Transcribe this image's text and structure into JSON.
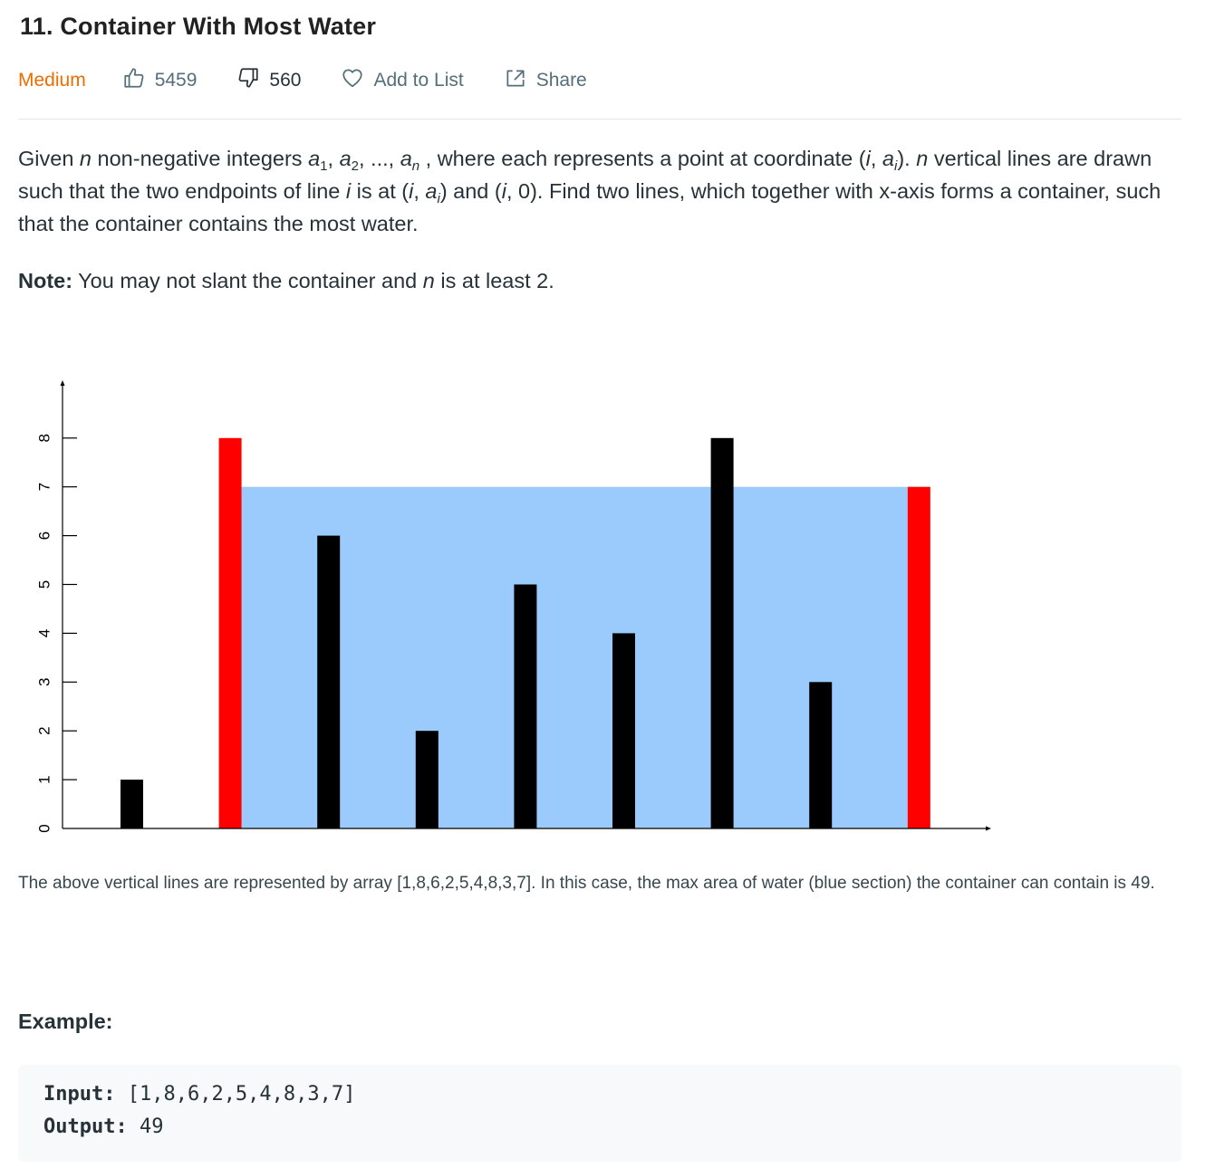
{
  "problem": {
    "title": "11. Container With Most Water",
    "difficulty": "Medium",
    "likes": "5459",
    "dislikes": "560",
    "add_to_list_label": "Add to List",
    "share_label": "Share"
  },
  "description": {
    "t1": "Given ",
    "n": "n",
    "t2": " non-negative integers ",
    "a": "a",
    "sub1": "1",
    "sep1": ", ",
    "sub2": "2",
    "ellipsis": ", ..., ",
    "subn": "n",
    "t3": " , where each represents a point at coordinate (",
    "i": "i",
    "comma": ", ",
    "subi": "i",
    "t4": "). ",
    "t5": " vertical lines are drawn such that the two endpoints of line ",
    "t6": " is at (",
    "t7": ") and (",
    "t8": ", 0). Find two lines, which together with x-axis forms a container, such that the container contains the most water."
  },
  "note": {
    "label": "Note:",
    "t1": " You may not slant the container and ",
    "t2": " is at least 2."
  },
  "chart_data": {
    "type": "bar",
    "categories": [
      "1",
      "2",
      "3",
      "4",
      "5",
      "6",
      "7",
      "8",
      "9"
    ],
    "values": [
      1,
      8,
      6,
      2,
      5,
      4,
      8,
      3,
      7
    ],
    "highlighted_indices": [
      1,
      8
    ],
    "water_level": 7,
    "ylim": [
      0,
      8
    ],
    "yticks": [
      "0",
      "1",
      "2",
      "3",
      "4",
      "5",
      "6",
      "7",
      "8"
    ],
    "bar_color": "#000000",
    "highlight_color": "#ff0000",
    "water_color": "#9bcbfd",
    "ytick_label_orientation": "rotated",
    "grid": false
  },
  "caption": {
    "text": "The above vertical lines are represented by array [1,8,6,2,5,4,8,3,7]. In this case, the max area of water (blue section) the container can contain is 49."
  },
  "example": {
    "heading": "Example:",
    "input_label": "Input:",
    "input_value": " [1,8,6,2,5,4,8,3,7]",
    "output_label": "Output:",
    "output_value": " 49"
  },
  "colors": {
    "difficulty_medium": "#ef6c00",
    "text_primary": "#263238",
    "text_secondary": "#546e7a",
    "code_background": "#f7f9fa"
  },
  "icons": [
    "thumbs-up-icon",
    "thumbs-down-icon",
    "heart-icon",
    "share-icon"
  ]
}
